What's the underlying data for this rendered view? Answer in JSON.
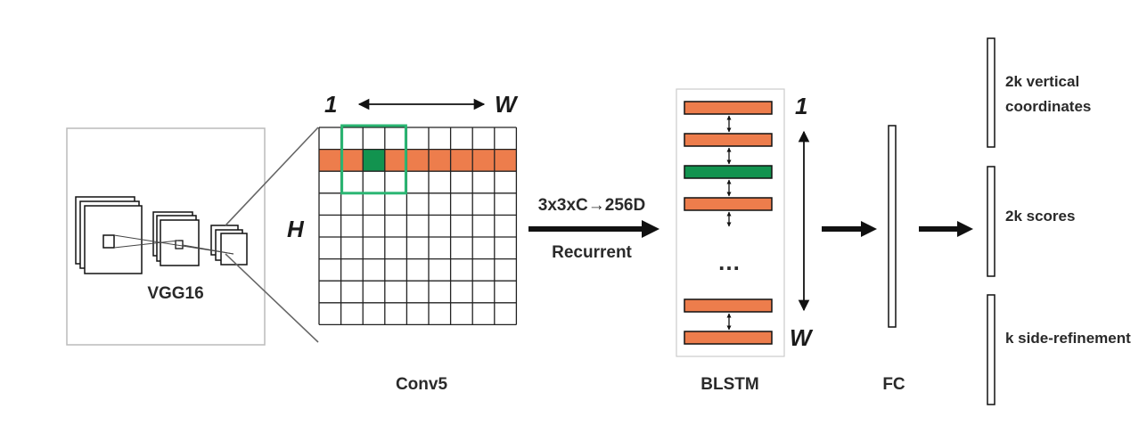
{
  "labels": {
    "vgg": "VGG16",
    "conv5": "Conv5",
    "grid_left": "1",
    "grid_right": "W",
    "grid_height": "H",
    "transform": "3x3xC→256D",
    "recurrent": "Recurrent",
    "blstm": "BLSTM",
    "blstm_top": "1",
    "blstm_bottom": "W",
    "ellipsis": "…",
    "fc": "FC",
    "out1_line1": "2k vertical",
    "out1_line2": "coordinates",
    "out2": "2k scores",
    "out3": "k side-refinement"
  },
  "colors": {
    "orange": "#ED7D4C",
    "green": "#12934F",
    "window": "#2BB673",
    "border": "#222222",
    "panel": "#BBBBBB"
  },
  "grid": {
    "cols": 9,
    "rows": 9,
    "highlight_row": 2,
    "highlight_col": 3
  },
  "blstm": {
    "highlight_index": 3
  }
}
